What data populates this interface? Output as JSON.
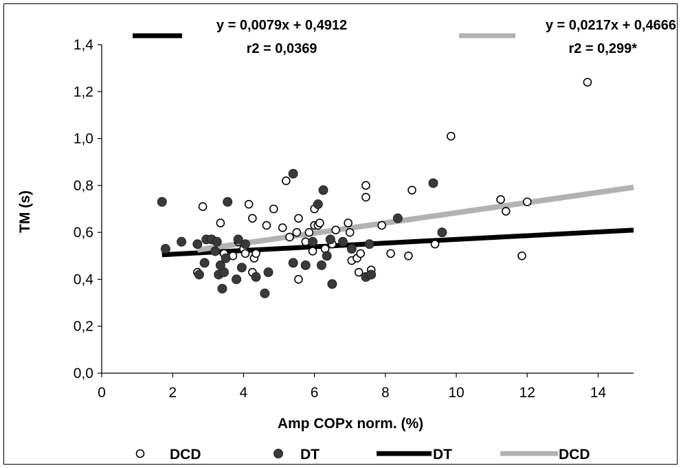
{
  "chart_data": {
    "type": "scatter",
    "xlabel": "Amp COPx norm. (%)",
    "ylabel": "TM (s)",
    "xlim": [
      0,
      15
    ],
    "ylim": [
      0,
      1.4
    ],
    "x_ticks": [
      "0",
      "2",
      "4",
      "6",
      "8",
      "10",
      "12",
      "14"
    ],
    "y_ticks": [
      "0,0",
      "0,2",
      "0,4",
      "0,6",
      "0,8",
      "1,0",
      "1,2",
      "1,4"
    ],
    "series": [
      {
        "name": "DCD",
        "marker": "open-circle",
        "color": "#000000",
        "points": [
          [
            2.7,
            0.43
          ],
          [
            2.85,
            0.71
          ],
          [
            3.35,
            0.64
          ],
          [
            3.45,
            0.51
          ],
          [
            3.7,
            0.5
          ],
          [
            3.85,
            0.56
          ],
          [
            4.0,
            0.53
          ],
          [
            4.05,
            0.51
          ],
          [
            4.15,
            0.72
          ],
          [
            4.25,
            0.66
          ],
          [
            4.25,
            0.43
          ],
          [
            4.3,
            0.49
          ],
          [
            4.35,
            0.51
          ],
          [
            4.65,
            0.63
          ],
          [
            4.85,
            0.7
          ],
          [
            5.1,
            0.62
          ],
          [
            5.2,
            0.82
          ],
          [
            5.3,
            0.58
          ],
          [
            5.5,
            0.6
          ],
          [
            5.55,
            0.4
          ],
          [
            5.55,
            0.66
          ],
          [
            5.75,
            0.56
          ],
          [
            5.85,
            0.6
          ],
          [
            5.95,
            0.52
          ],
          [
            6.0,
            0.7
          ],
          [
            6.0,
            0.63
          ],
          [
            6.1,
            0.63
          ],
          [
            6.15,
            0.64
          ],
          [
            6.3,
            0.53
          ],
          [
            6.5,
            0.55
          ],
          [
            6.6,
            0.61
          ],
          [
            6.95,
            0.64
          ],
          [
            7.0,
            0.6
          ],
          [
            7.05,
            0.48
          ],
          [
            7.2,
            0.49
          ],
          [
            7.25,
            0.43
          ],
          [
            7.3,
            0.51
          ],
          [
            7.45,
            0.8
          ],
          [
            7.45,
            0.75
          ],
          [
            7.6,
            0.44
          ],
          [
            7.9,
            0.63
          ],
          [
            8.15,
            0.51
          ],
          [
            8.65,
            0.5
          ],
          [
            8.75,
            0.78
          ],
          [
            9.4,
            0.55
          ],
          [
            9.85,
            1.01
          ],
          [
            11.25,
            0.74
          ],
          [
            11.4,
            0.69
          ],
          [
            11.85,
            0.5
          ],
          [
            12.0,
            0.73
          ],
          [
            13.7,
            1.24
          ]
        ]
      },
      {
        "name": "DT",
        "marker": "filled-circle",
        "color": "#3a3a3a",
        "points": [
          [
            1.7,
            0.73
          ],
          [
            1.8,
            0.53
          ],
          [
            2.25,
            0.56
          ],
          [
            2.7,
            0.55
          ],
          [
            2.75,
            0.42
          ],
          [
            2.9,
            0.47
          ],
          [
            2.95,
            0.57
          ],
          [
            3.1,
            0.57
          ],
          [
            3.2,
            0.52
          ],
          [
            3.25,
            0.56
          ],
          [
            3.3,
            0.42
          ],
          [
            3.35,
            0.46
          ],
          [
            3.4,
            0.36
          ],
          [
            3.45,
            0.43
          ],
          [
            3.5,
            0.49
          ],
          [
            3.55,
            0.73
          ],
          [
            3.8,
            0.4
          ],
          [
            3.85,
            0.57
          ],
          [
            3.95,
            0.45
          ],
          [
            4.05,
            0.55
          ],
          [
            4.35,
            0.41
          ],
          [
            4.6,
            0.34
          ],
          [
            4.7,
            0.43
          ],
          [
            5.4,
            0.47
          ],
          [
            5.4,
            0.85
          ],
          [
            5.75,
            0.46
          ],
          [
            5.95,
            0.56
          ],
          [
            6.1,
            0.72
          ],
          [
            6.2,
            0.46
          ],
          [
            6.25,
            0.78
          ],
          [
            6.35,
            0.5
          ],
          [
            6.45,
            0.57
          ],
          [
            6.5,
            0.38
          ],
          [
            6.8,
            0.56
          ],
          [
            7.05,
            0.53
          ],
          [
            7.45,
            0.41
          ],
          [
            7.55,
            0.55
          ],
          [
            7.6,
            0.42
          ],
          [
            8.35,
            0.66
          ],
          [
            9.35,
            0.81
          ],
          [
            9.6,
            0.6
          ]
        ]
      }
    ],
    "trendlines": [
      {
        "name": "DT",
        "slope": 0.0079,
        "intercept": 0.4912,
        "x_range": [
          1.7,
          15
        ],
        "color": "#000000"
      },
      {
        "name": "DCD",
        "slope": 0.0217,
        "intercept": 0.4666,
        "x_range": [
          2.7,
          15
        ],
        "color": "#b2b2b2"
      }
    ],
    "annotations": {
      "dt_equation": "y = 0,0079x + 0,4912",
      "dt_r2": "r2 = 0,0369",
      "dcd_equation": "y = 0,0217x + 0,4666",
      "dcd_r2": "r2 = 0,299*"
    },
    "legend": {
      "placement": "bottom",
      "items": [
        {
          "label": "DCD",
          "kind": "open-circle"
        },
        {
          "label": "DT",
          "kind": "filled-circle"
        },
        {
          "label": "DT",
          "kind": "black-line"
        },
        {
          "label": "DCD",
          "kind": "gray-line"
        }
      ]
    },
    "grid": false
  }
}
